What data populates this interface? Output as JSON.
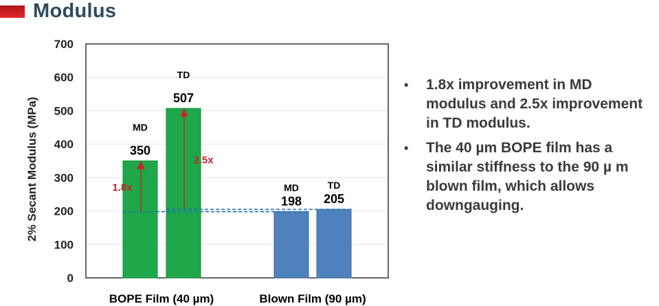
{
  "page": {
    "title": "Modulus"
  },
  "chart_data": {
    "type": "bar",
    "ylabel": "2% Secant Modulus (MPa)",
    "ylim": [
      0,
      700
    ],
    "yticks": [
      0,
      100,
      200,
      300,
      400,
      500,
      600,
      700
    ],
    "grid": true,
    "groups": [
      {
        "label": "BOPE Film (40 µm)",
        "bars": [
          {
            "name": "MD",
            "value": 350,
            "value_label": "350",
            "color": "#1fa84a"
          },
          {
            "name": "TD",
            "value": 507,
            "value_label": "507",
            "color": "#1fa84a"
          }
        ]
      },
      {
        "label": "Blown Film  (90 µm)",
        "bars": [
          {
            "name": "MD",
            "value": 198,
            "value_label": "198",
            "color": "#4f81bd"
          },
          {
            "name": "TD",
            "value": 205,
            "value_label": "205",
            "color": "#4f81bd"
          }
        ]
      }
    ],
    "annotations": [
      {
        "text": "1.8x",
        "bar": "BOPE MD",
        "from": 198,
        "to": 350,
        "color": "#c0282d"
      },
      {
        "text": "2.5x",
        "bar": "BOPE TD",
        "from": 205,
        "to": 507,
        "color": "#c0282d"
      }
    ],
    "reference_lines": [
      {
        "value": 198,
        "style": "dashed",
        "color": "#1f6fb5"
      },
      {
        "value": 205,
        "style": "dashed",
        "color": "#1f6fb5"
      }
    ]
  },
  "bullets": [
    "1.8x improvement in MD modulus and 2.5x improvement in TD modulus.",
    "The 40 µm BOPE film has a similar stiffness to the 90 µ m blown film, which allows downgauging."
  ]
}
